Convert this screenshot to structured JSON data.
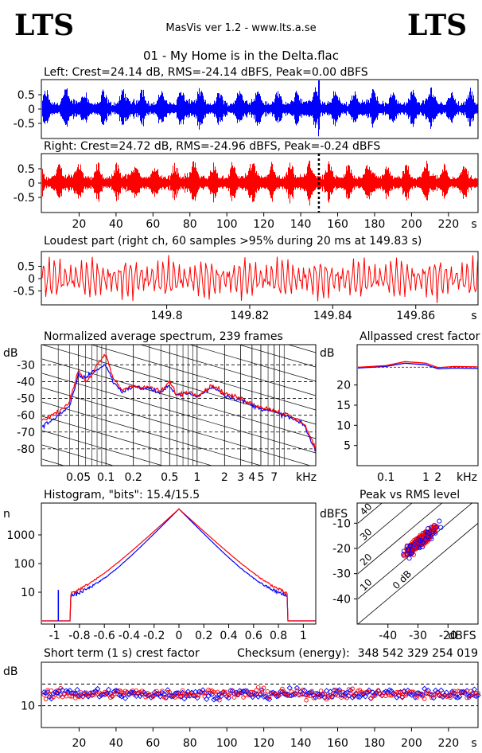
{
  "header": {
    "logo_left": "LTS",
    "logo_right": "LTS",
    "app_title": "MasVis ver 1.2 - www.lts.a.se",
    "file_title": "01 - My Home is in the Delta.flac"
  },
  "colors": {
    "left": "#0000ff",
    "right": "#ff0000",
    "axis": "#000000"
  },
  "chart_data": [
    {
      "id": "left-waveform",
      "type": "area",
      "title": "Left: Crest=24.14 dB, RMS=-24.14 dBFS, Peak=0.00 dBFS",
      "y_ticks": [
        "0.5",
        "0",
        "-0.5"
      ],
      "ylim": [
        -1,
        1
      ],
      "xlim": [
        0,
        236
      ],
      "stats": {
        "crest_db": 24.14,
        "rms_dbfs": -24.14,
        "peak_dbfs": 0.0
      },
      "series": [
        {
          "color": "blue",
          "rms_envelope": "dense audio waveform",
          "peak": 1.0,
          "peak_time_s": 149.8
        }
      ]
    },
    {
      "id": "right-waveform",
      "type": "area",
      "title": "Right: Crest=24.72 dB, RMS=-24.96 dBFS, Peak=-0.24 dBFS",
      "y_ticks": [
        "0.5",
        "0",
        "-0.5"
      ],
      "x_ticks": [
        "20",
        "40",
        "60",
        "80",
        "100",
        "120",
        "140",
        "160",
        "180",
        "200",
        "220"
      ],
      "x_unit": "s",
      "ylim": [
        -1,
        1
      ],
      "xlim": [
        0,
        236
      ],
      "stats": {
        "crest_db": 24.72,
        "rms_dbfs": -24.96,
        "peak_dbfs": -0.24
      },
      "marker_s": 149.83,
      "series": [
        {
          "color": "red",
          "peak": 0.97
        }
      ]
    },
    {
      "id": "loudest-part",
      "type": "line",
      "title": "Loudest part (right ch, 60 samples >95% during 20 ms at 149.83 s)",
      "y_ticks": [
        "0.5",
        "0",
        "-0.5"
      ],
      "x_ticks": [
        "149.8",
        "149.82",
        "149.84",
        "149.86"
      ],
      "x_unit": "s",
      "xlim": [
        149.77,
        149.875
      ],
      "ylim": [
        -1,
        1
      ]
    },
    {
      "id": "spectrum",
      "type": "line",
      "title": "Normalized average spectrum, 239 frames",
      "ylabel": "dB",
      "y_ticks": [
        "-30",
        "-40",
        "-50",
        "-60",
        "-70",
        "-80"
      ],
      "x_ticks": [
        "0.05",
        "0.1",
        "0.2",
        "0.5",
        "1",
        "2",
        "3",
        "4",
        "5",
        "7"
      ],
      "x_unit": "kHz",
      "ylim": [
        -90,
        -18
      ],
      "xlim_khz": [
        0.02,
        20
      ],
      "xscale": "log",
      "x": [
        0.02,
        0.03,
        0.04,
        0.05,
        0.06,
        0.07,
        0.08,
        0.1,
        0.12,
        0.15,
        0.2,
        0.25,
        0.3,
        0.4,
        0.5,
        0.6,
        0.8,
        1,
        1.5,
        2,
        3,
        4,
        5,
        7,
        10,
        15,
        20
      ],
      "series": [
        {
          "name": "",
          "color": "blue",
          "values": [
            -63,
            -58,
            -52,
            -33,
            -40,
            -36,
            -30,
            -24,
            -38,
            -45,
            -42,
            -44,
            -43,
            -46,
            -40,
            -48,
            -46,
            -48,
            -42,
            -47,
            -50,
            -53,
            -55,
            -57,
            -60,
            -65,
            -80
          ]
        },
        {
          "name": "",
          "color": "red",
          "values": [
            -67,
            -60,
            -55,
            -36,
            -38,
            -34,
            -33,
            -30,
            -40,
            -46,
            -43,
            -44,
            -44,
            -47,
            -42,
            -48,
            -47,
            -49,
            -43,
            -48,
            -51,
            -54,
            -56,
            -58,
            -61,
            -66,
            -82
          ]
        }
      ]
    },
    {
      "id": "allpass-crest",
      "type": "line",
      "title": "Allpassed crest factor",
      "ylabel": "dB",
      "y_ticks": [
        "20",
        "15",
        "10",
        "5"
      ],
      "x_ticks": [
        "0.1",
        "1",
        "2"
      ],
      "x_unit": "kHz",
      "ylim": [
        0,
        30
      ],
      "reference_db": 24.4,
      "x": [
        0.02,
        0.1,
        0.3,
        1,
        2,
        5,
        20
      ],
      "series": [
        {
          "color": "blue",
          "values": [
            24.2,
            24.6,
            25.4,
            25.0,
            24.0,
            24.2,
            24.1
          ]
        },
        {
          "color": "red",
          "values": [
            24.4,
            24.8,
            25.8,
            25.4,
            24.3,
            24.6,
            24.5
          ]
        }
      ]
    },
    {
      "id": "histogram",
      "type": "line",
      "title": "Histogram, \"bits\": 15.4/15.5",
      "ylabel": "n",
      "y_ticks": [
        "1000",
        "100",
        "10"
      ],
      "x_ticks": [
        "-1",
        "-0.8",
        "-0.6",
        "-0.4",
        "-0.2",
        "0",
        "0.2",
        "0.4",
        "0.6",
        "0.8",
        "1"
      ],
      "yscale": "log",
      "xlim": [
        -1.1,
        1.1
      ],
      "ylim_log": [
        0,
        4
      ],
      "bits": {
        "left": 15.4,
        "right": 15.5
      }
    },
    {
      "id": "peak-vs-rms",
      "type": "scatter",
      "title": "Peak vs RMS level",
      "ylabel": "dBFS",
      "xlabel": "dBFS",
      "y_ticks": [
        "-10",
        "-20",
        "-30",
        "-40"
      ],
      "x_ticks": [
        "-40",
        "-30",
        "-20"
      ],
      "diag_labels": [
        "40",
        "30",
        "20",
        "10",
        "0 dB"
      ],
      "xlim": [
        -50,
        -10
      ],
      "ylim": [
        -50,
        -2
      ]
    },
    {
      "id": "short-term-crest",
      "type": "scatter",
      "title": "Short term (1 s) crest factor",
      "checksum_label": "Checksum (energy):",
      "checksum_value": "348 542 329 254 019",
      "ylabel": "dB",
      "y_ticks": [
        "10"
      ],
      "x_ticks": [
        "20",
        "40",
        "60",
        "80",
        "100",
        "120",
        "140",
        "160",
        "180",
        "200",
        "220"
      ],
      "x_unit": "s",
      "xlim": [
        0,
        236
      ],
      "ylim": [
        0,
        30
      ],
      "dashed_lines": [
        10,
        20
      ]
    }
  ]
}
